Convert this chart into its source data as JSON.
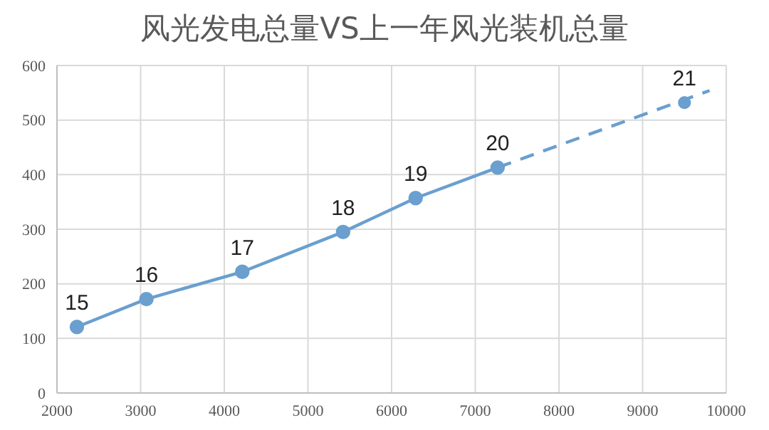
{
  "chart_data": {
    "type": "line",
    "title": "风光发电总量VS上一年风光装机总量",
    "xlim": [
      2000,
      10000
    ],
    "xticks": [
      2000,
      3000,
      4000,
      5000,
      6000,
      7000,
      8000,
      9000,
      10000
    ],
    "ylim": [
      0,
      600
    ],
    "yticks": [
      0,
      100,
      200,
      300,
      400,
      500,
      600
    ],
    "grid": true,
    "annotations": [
      {
        "text": "15",
        "x": 2238,
        "y": 121
      },
      {
        "text": "16",
        "x": 3069,
        "y": 172
      },
      {
        "text": "17",
        "x": 4215,
        "y": 222
      },
      {
        "text": "18",
        "x": 5420,
        "y": 295
      },
      {
        "text": "19",
        "x": 6287,
        "y": 357
      },
      {
        "text": "20",
        "x": 7267,
        "y": 413
      },
      {
        "text": "21",
        "x": 9500,
        "y": 532
      }
    ],
    "series": [
      {
        "color": "#6a9fcf",
        "marker": "circle",
        "line_style": "solid",
        "x": [
          2238,
          3069,
          4215,
          5420,
          6287,
          7267
        ],
        "values": [
          121,
          172,
          222,
          295,
          357,
          413
        ]
      },
      {
        "type": "scatter",
        "color": "#6a9fcf",
        "marker": "circle",
        "x": [
          9500
        ],
        "values": [
          532
        ]
      },
      {
        "type": "line",
        "color": "#6a9fcf",
        "marker": "none",
        "line_style": "dashed",
        "x": [
          7267,
          9800
        ],
        "values": [
          413,
          554
        ]
      }
    ]
  }
}
